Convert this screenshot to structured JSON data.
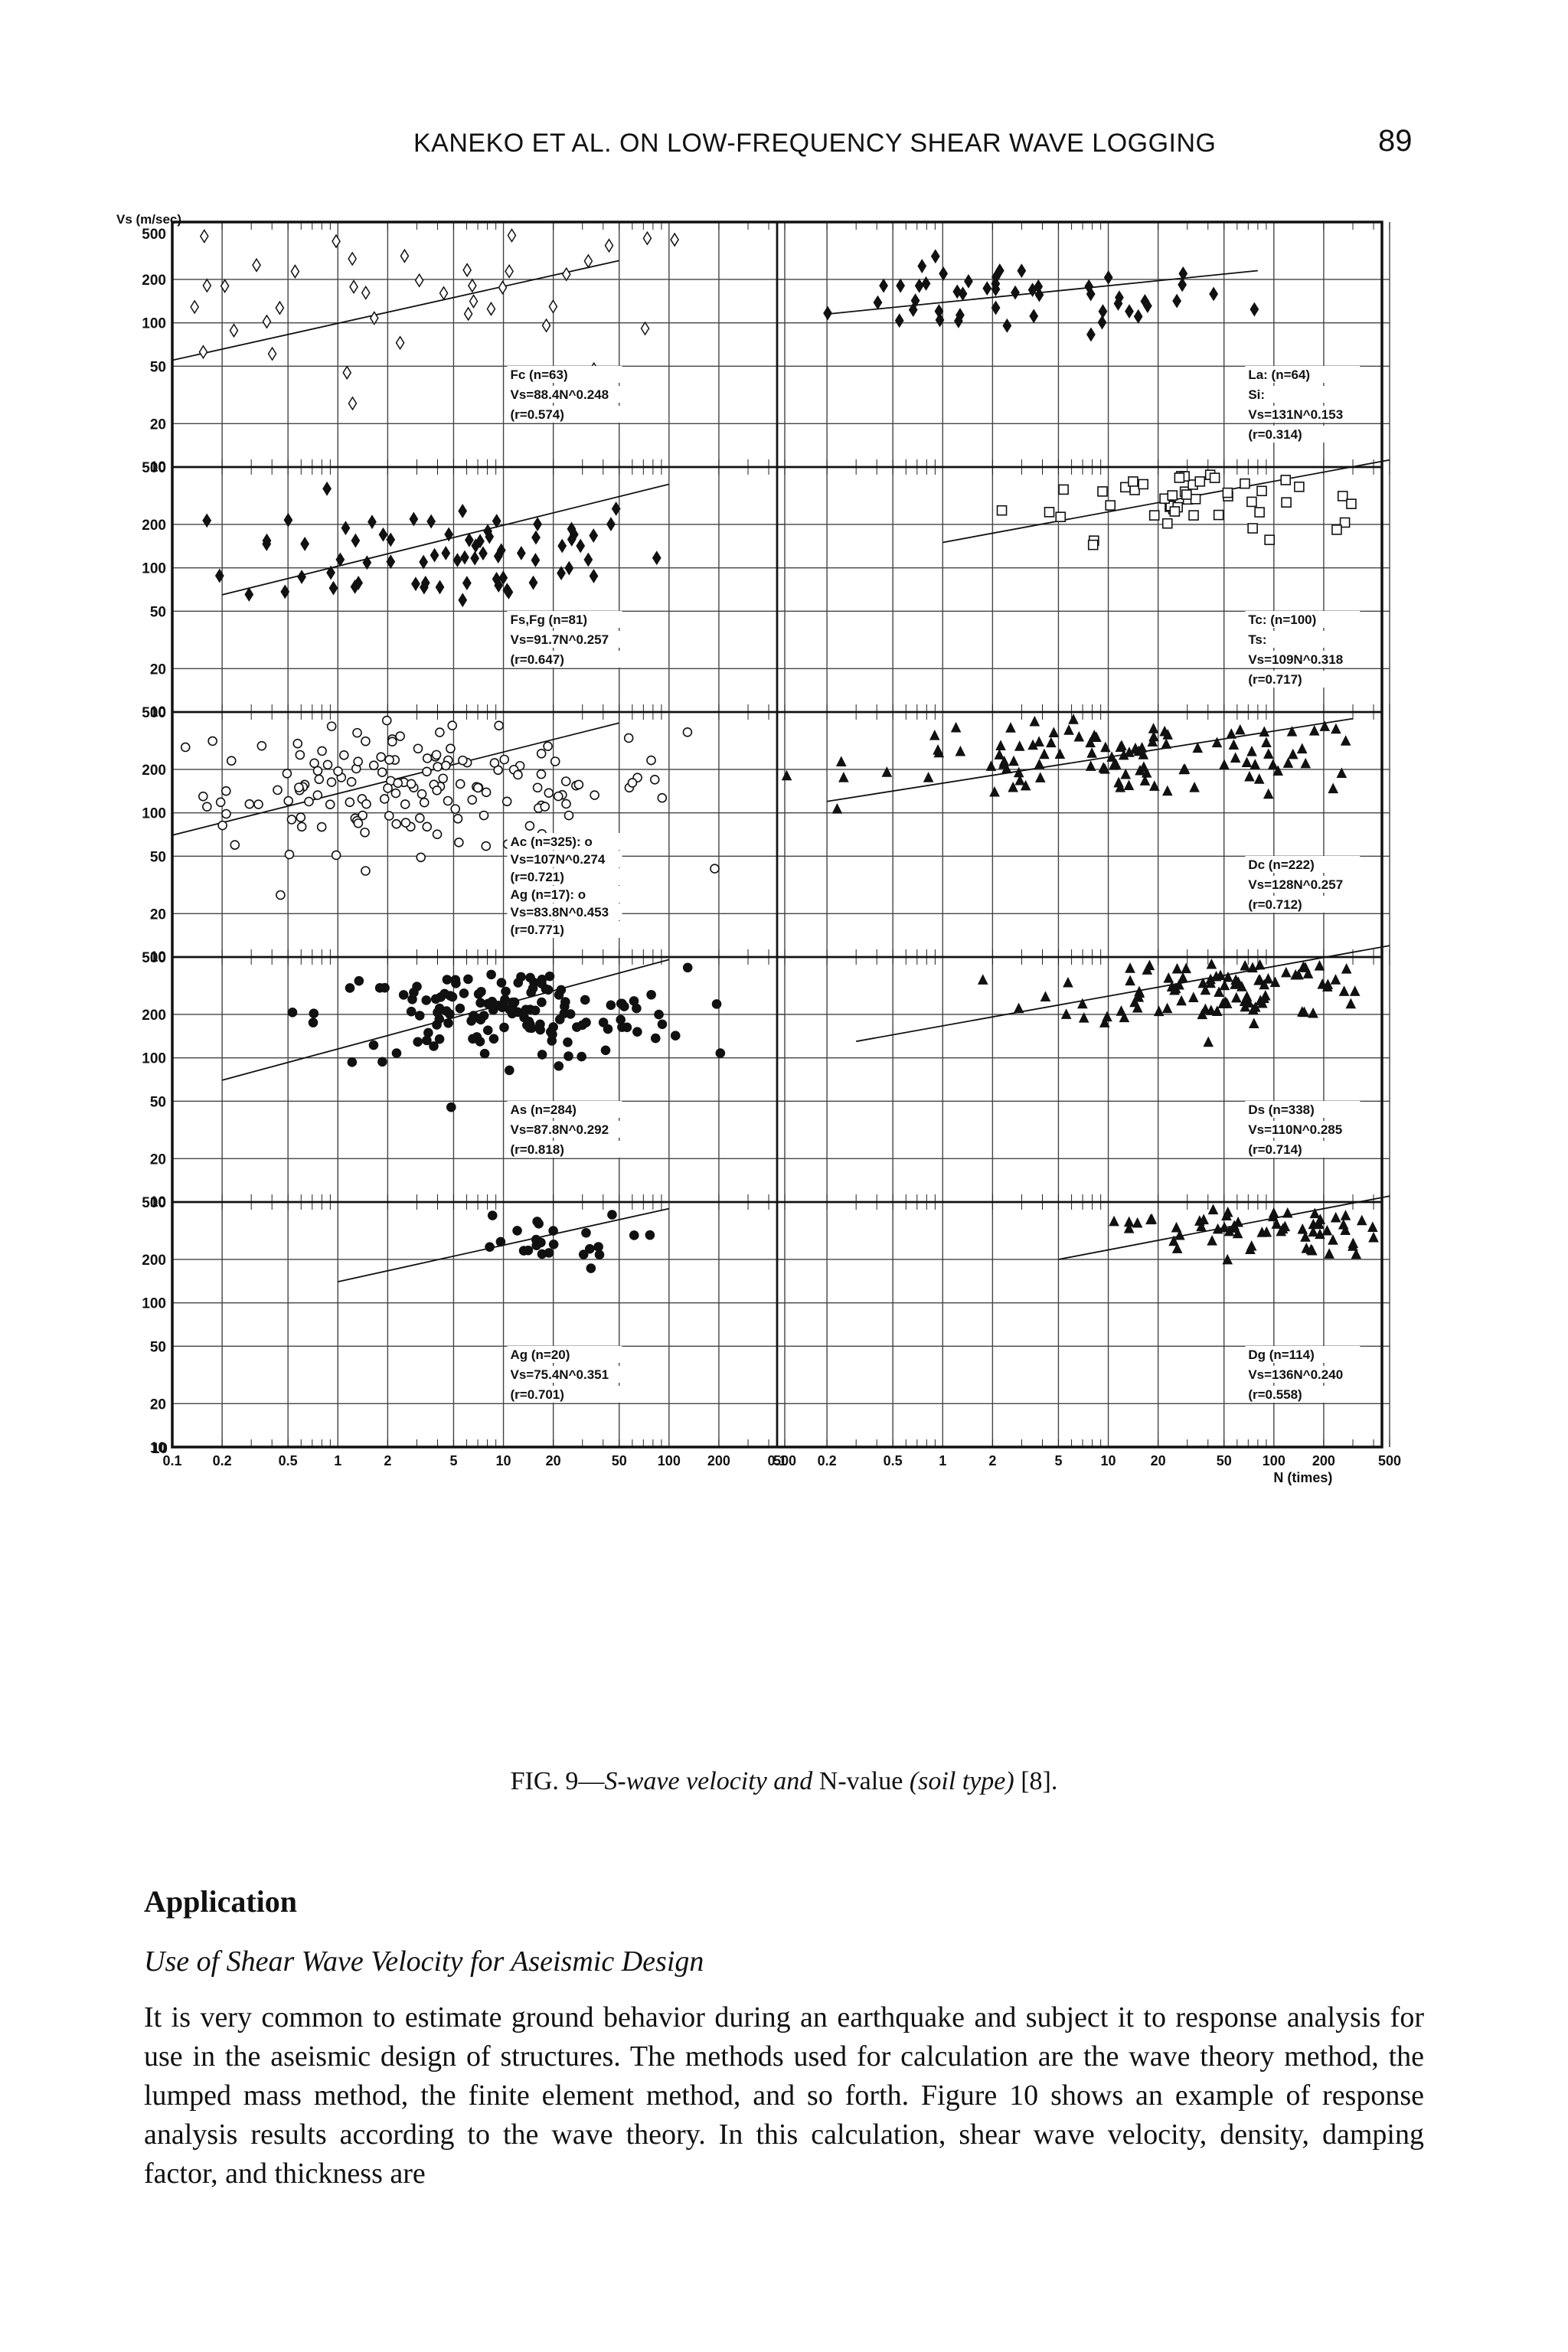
{
  "header": {
    "running_head": "KANEKO ET AL. ON LOW-FREQUENCY SHEAR WAVE LOGGING",
    "page_number": "89"
  },
  "figure": {
    "caption_label": "FIG. 9—",
    "caption_title": "S-wave velocity and ",
    "caption_var": "N-value",
    "caption_tail": " (soil type)",
    "caption_ref": " [8]."
  },
  "chart_data": {
    "type": "scatter",
    "layout": "5 rows x 2 columns of log-log panels",
    "ylabel": "Vs (m/sec)",
    "xlabel": "N (times)",
    "x_scale": "log",
    "y_scale": "log",
    "xlim": [
      0.1,
      500
    ],
    "ylim": [
      10,
      500
    ],
    "y_ticks": [
      {
        "v": 500,
        "label": "500"
      },
      {
        "v": 200,
        "label": "200"
      },
      {
        "v": 100,
        "label": "100"
      },
      {
        "v": 50,
        "label": "50"
      },
      {
        "v": 20,
        "label": "20"
      },
      {
        "v": 10,
        "label": "10"
      }
    ],
    "x_ticks": [
      {
        "v": 0.1,
        "label": "0.1"
      },
      {
        "v": 0.2,
        "label": "0.2"
      },
      {
        "v": 0.5,
        "label": "0.5"
      },
      {
        "v": 1,
        "label": "1"
      },
      {
        "v": 2,
        "label": "2"
      },
      {
        "v": 5,
        "label": "5"
      },
      {
        "v": 10,
        "label": "10"
      },
      {
        "v": 20,
        "label": "20"
      },
      {
        "v": 50,
        "label": "50"
      },
      {
        "v": 100,
        "label": "100"
      },
      {
        "v": 200,
        "label": "200"
      },
      {
        "v": 500,
        "label": "500"
      }
    ],
    "grid": true,
    "panels": [
      {
        "row": 0,
        "col": 0,
        "marker": "diamond-open",
        "cx": 2.5,
        "cy": 150,
        "sx": 1.0,
        "sy": 0.28,
        "n": 45,
        "line": {
          "x0": 0.1,
          "y0": 55,
          "x1": 50,
          "y1": 270
        },
        "labels": [
          "Fc (n=63)",
          "Vs=88.4N^0.248",
          "(r=0.574)"
        ]
      },
      {
        "row": 0,
        "col": 1,
        "marker": "diamond-filled",
        "cx": 2.5,
        "cy": 145,
        "sx": 0.7,
        "sy": 0.12,
        "n": 50,
        "line": {
          "x0": 0.2,
          "y0": 115,
          "x1": 80,
          "y1": 230
        },
        "labels": [
          "La: (n=64)",
          "Si:",
          "Vs=131N^0.153",
          "(r=0.314)"
        ]
      },
      {
        "row": 1,
        "col": 0,
        "marker": "diamond-filled",
        "cx": 5,
        "cy": 130,
        "sx": 0.65,
        "sy": 0.2,
        "n": 70,
        "line": {
          "x0": 0.2,
          "y0": 65,
          "x1": 100,
          "y1": 380
        },
        "labels": [
          "Fs,Fg (n=81)",
          "Vs=91.7N^0.257",
          "(r=0.647)"
        ]
      },
      {
        "row": 1,
        "col": 1,
        "marker": "square-open",
        "cx": 30,
        "cy": 320,
        "sx": 0.55,
        "sy": 0.15,
        "n": 60,
        "line": {
          "x0": 1,
          "y0": 150,
          "x1": 500,
          "y1": 560
        },
        "labels": [
          "Tc: (n=100)",
          "Ts:",
          "Vs=109N^0.318",
          "(r=0.717)"
        ]
      },
      {
        "row": 2,
        "col": 0,
        "marker": "circle-open",
        "cx": 3,
        "cy": 150,
        "sx": 0.8,
        "sy": 0.22,
        "n": 160,
        "line": {
          "x0": 0.1,
          "y0": 70,
          "x1": 50,
          "y1": 420
        },
        "labels": [
          "Ac (n=325): o",
          "Vs=107N^0.274",
          "(r=0.721)",
          "Ag (n=17): o",
          "Vs=83.8N^0.453",
          "(r=0.771)"
        ]
      },
      {
        "row": 2,
        "col": 1,
        "marker": "triangle-filled",
        "cx": 15,
        "cy": 240,
        "sx": 0.8,
        "sy": 0.14,
        "n": 110,
        "line": {
          "x0": 0.2,
          "y0": 120,
          "x1": 300,
          "y1": 450
        },
        "labels": [
          "Dc (n=222)",
          "Vs=128N^0.257",
          "(r=0.712)"
        ]
      },
      {
        "row": 3,
        "col": 0,
        "marker": "circle-filled",
        "cx": 10,
        "cy": 200,
        "sx": 0.55,
        "sy": 0.16,
        "n": 140,
        "line": {
          "x0": 0.2,
          "y0": 70,
          "x1": 100,
          "y1": 480
        },
        "labels": [
          "As (n=284)",
          "Vs=87.8N^0.292",
          "(r=0.818)"
        ]
      },
      {
        "row": 3,
        "col": 1,
        "marker": "triangle-filled",
        "cx": 50,
        "cy": 320,
        "sx": 0.5,
        "sy": 0.14,
        "n": 110,
        "line": {
          "x0": 0.3,
          "y0": 130,
          "x1": 500,
          "y1": 600
        },
        "labels": [
          "Ds (n=338)",
          "Vs=110N^0.285",
          "(r=0.714)"
        ]
      },
      {
        "row": 4,
        "col": 0,
        "marker": "circle-filled",
        "cx": 15,
        "cy": 270,
        "sx": 0.3,
        "sy": 0.1,
        "n": 25,
        "line": {
          "x0": 1,
          "y0": 140,
          "x1": 100,
          "y1": 450
        },
        "labels": [
          "Ag (n=20)",
          "Vs=75.4N^0.351",
          "(r=0.701)"
        ]
      },
      {
        "row": 4,
        "col": 1,
        "marker": "triangle-filled",
        "cx": 80,
        "cy": 330,
        "sx": 0.4,
        "sy": 0.1,
        "n": 70,
        "line": {
          "x0": 5,
          "y0": 200,
          "x1": 500,
          "y1": 550
        },
        "labels": [
          "Dg (n=114)",
          "Vs=136N^0.240",
          "(r=0.558)"
        ]
      }
    ]
  },
  "section": {
    "title": "Application",
    "subtitle": "Use of Shear Wave Velocity for Aseismic Design",
    "paragraph": "It is very common to estimate ground behavior during an earthquake and subject it to response analysis for use in the aseismic design of structures. The methods used for calculation are the wave theory method, the lumped mass method, the finite element method, and so forth. Figure 10 shows an example of response analysis results according to the wave theory. In this calculation, shear wave velocity, density, damping factor, and thickness are"
  }
}
